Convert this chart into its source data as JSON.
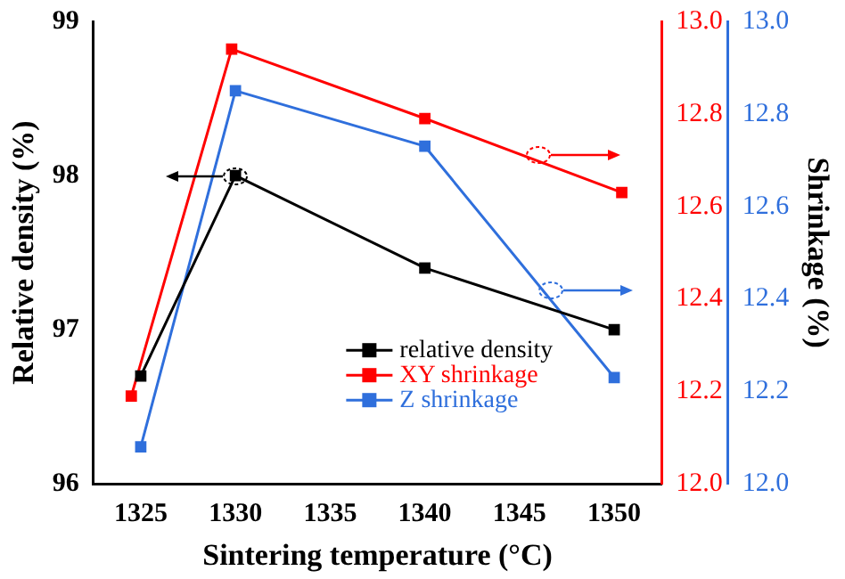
{
  "chart_data": {
    "type": "line",
    "xlabel": "Sintering temperature (°C)",
    "ylabel": "Relative density (%)",
    "y3label": "Shrinkage (%)",
    "xlim": [
      1322.5,
      1352.5
    ],
    "xticks": [
      1325,
      1330,
      1335,
      1340,
      1345,
      1350
    ],
    "ylim": [
      96,
      99
    ],
    "yticks": [
      96,
      97,
      98,
      99
    ],
    "y2lim": [
      12,
      13
    ],
    "y2ticks": [
      {
        "value": 12,
        "label": "12.0"
      },
      12.2,
      12.4,
      12.6,
      12.8,
      {
        "value": 13,
        "label": "13.0"
      }
    ],
    "y3lim": [
      12,
      13
    ],
    "y3ticks": [
      {
        "value": 12,
        "label": "12.0"
      },
      12.2,
      12.4,
      12.6,
      12.8,
      {
        "value": 13,
        "label": "13.0"
      }
    ],
    "series": [
      {
        "name": "relative density",
        "color": "#000000",
        "x": [
          1325,
          1330,
          1340,
          1350
        ],
        "values": [
          96.7,
          98.0,
          97.4,
          97.0
        ]
      },
      {
        "name": "XY shrinkage",
        "color": "#ff0000",
        "axis": "y2",
        "x": [
          1324.5,
          1329.8,
          1340,
          1350.4
        ],
        "values": [
          12.19,
          12.94,
          12.79,
          12.63
        ]
      },
      {
        "name": "Z shrinkage",
        "color": "#2f6fdc",
        "axis": "y3",
        "x": [
          1325,
          1330,
          1340,
          1350
        ],
        "values": [
          12.08,
          12.85,
          12.73,
          12.23
        ]
      }
    ],
    "marker": "square",
    "legend": "bottom right",
    "grid": false
  }
}
